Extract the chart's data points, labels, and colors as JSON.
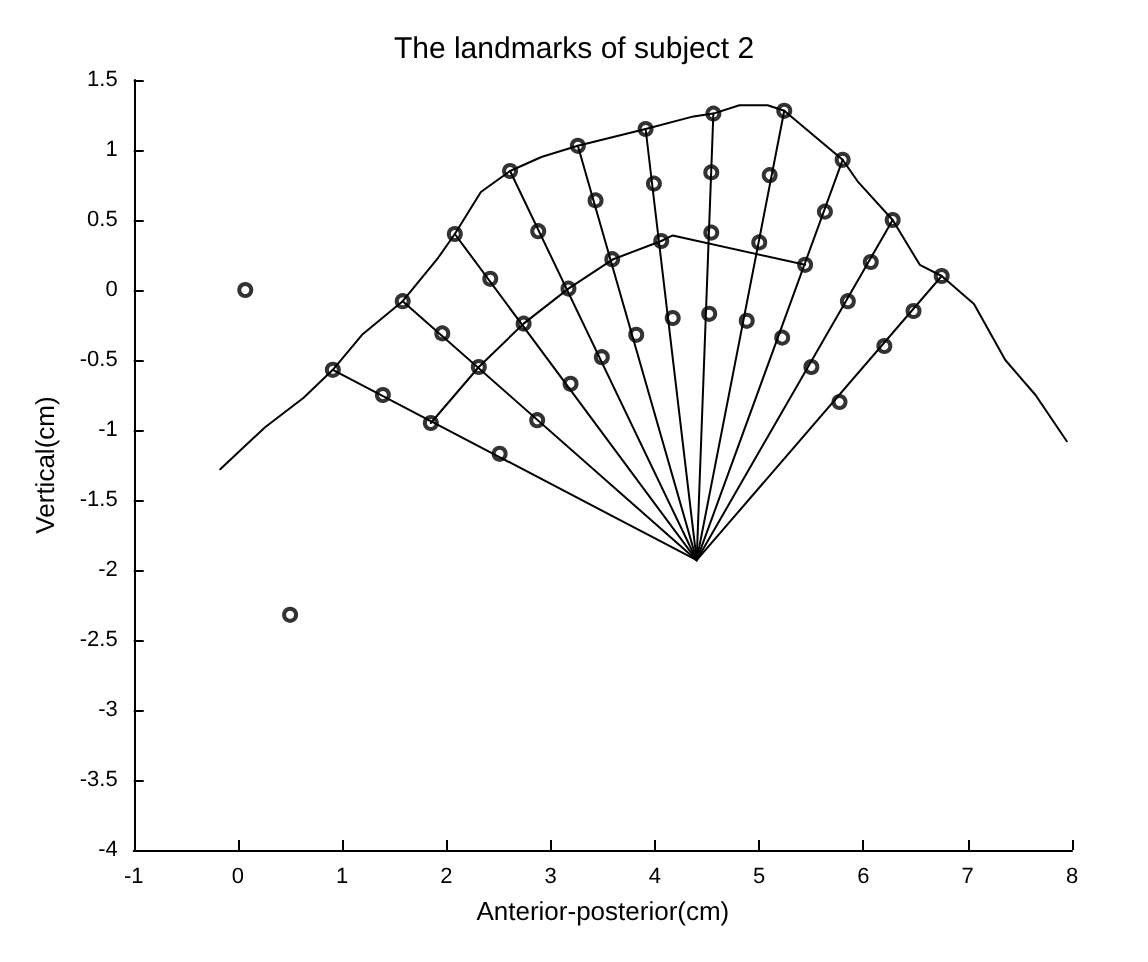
{
  "chart_data": {
    "type": "line",
    "title": "The landmarks of subject 2",
    "xlabel": "Anterior-posterior(cm)",
    "ylabel": "Vertical(cm)",
    "xlim": [
      -1,
      8
    ],
    "xticks": [
      -1,
      0,
      1,
      2,
      3,
      4,
      5,
      6,
      7,
      8
    ],
    "ylim": [
      -4,
      1.5
    ],
    "yticks": [
      -4,
      -3.5,
      -3,
      -2.5,
      -2,
      -1.5,
      -1,
      -0.5,
      0,
      0.5,
      1,
      1.5
    ],
    "grid": false,
    "series": [
      {
        "color": "#000000",
        "x": [
          -0.17,
          0.26,
          0.63,
          0.91,
          1.19,
          1.58,
          1.92,
          2.08,
          2.33,
          2.61,
          2.91,
          3.26,
          3.91,
          4.37,
          4.56,
          4.81,
          5.08,
          5.24,
          5.8,
          5.95,
          6.28,
          6.54,
          6.75,
          7.06,
          7.36,
          7.65,
          7.95
        ],
        "values": [
          -1.28,
          -0.98,
          -0.77,
          -0.57,
          -0.32,
          -0.08,
          0.23,
          0.4,
          0.7,
          0.85,
          0.95,
          1.03,
          1.15,
          1.24,
          1.26,
          1.32,
          1.32,
          1.28,
          0.93,
          0.77,
          0.5,
          0.18,
          0.1,
          -0.1,
          -0.5,
          -0.75,
          -1.08
        ]
      },
      {
        "color": "#000000",
        "x": [
          1.85,
          2.31,
          2.74,
          3.17,
          3.6,
          4.06,
          4.17,
          5.44
        ],
        "values": [
          -0.95,
          -0.55,
          -0.24,
          0.01,
          0.22,
          0.35,
          0.39,
          0.18
        ]
      },
      {
        "color": "#000000",
        "x": [
          4.4,
          0.91
        ],
        "values": [
          -1.93,
          -0.57
        ]
      },
      {
        "color": "#000000",
        "x": [
          4.4,
          1.58
        ],
        "values": [
          -1.93,
          -0.08
        ]
      },
      {
        "color": "#000000",
        "x": [
          4.4,
          2.08
        ],
        "values": [
          -1.93,
          0.4
        ]
      },
      {
        "color": "#000000",
        "x": [
          4.4,
          2.61
        ],
        "values": [
          -1.93,
          0.85
        ]
      },
      {
        "color": "#000000",
        "x": [
          4.4,
          3.26
        ],
        "values": [
          -1.93,
          1.03
        ]
      },
      {
        "color": "#000000",
        "x": [
          4.4,
          3.91
        ],
        "values": [
          -1.93,
          1.15
        ]
      },
      {
        "color": "#000000",
        "x": [
          4.4,
          4.56
        ],
        "values": [
          -1.93,
          1.26
        ]
      },
      {
        "color": "#000000",
        "x": [
          4.4,
          5.24
        ],
        "values": [
          -1.93,
          1.28
        ]
      },
      {
        "color": "#000000",
        "x": [
          4.4,
          5.8
        ],
        "values": [
          -1.93,
          0.93
        ]
      },
      {
        "color": "#000000",
        "x": [
          4.4,
          6.28
        ],
        "values": [
          -1.93,
          0.5
        ]
      },
      {
        "color": "#000000",
        "x": [
          4.4,
          6.75
        ],
        "values": [
          -1.93,
          0.1
        ]
      },
      {
        "type": "scatter",
        "marker": "circle",
        "color": "#000000",
        "x": [
          0.07,
          0.5,
          0.91,
          1.39,
          1.85,
          2.51,
          1.58,
          1.96,
          2.31,
          2.08,
          2.42,
          2.74,
          2.87,
          2.61,
          2.88,
          3.17,
          3.19,
          3.26,
          3.43,
          3.49,
          3.59,
          3.91,
          3.99,
          4.06,
          3.82,
          4.17,
          4.56,
          4.54,
          4.54,
          4.52,
          5.24,
          5.1,
          5.0,
          4.88,
          5.8,
          5.63,
          5.44,
          5.22,
          5.5,
          6.28,
          6.07,
          5.85,
          6.75,
          6.48,
          6.2,
          5.77
        ],
        "values": [
          0.0,
          -2.32,
          -0.57,
          -0.75,
          -0.95,
          -1.17,
          -0.08,
          -0.31,
          -0.55,
          0.4,
          0.08,
          -0.24,
          -0.93,
          0.85,
          0.42,
          0.01,
          -0.67,
          1.03,
          0.64,
          -0.48,
          0.22,
          1.15,
          0.76,
          0.35,
          -0.32,
          -0.2,
          1.26,
          0.84,
          0.41,
          -0.17,
          1.28,
          0.82,
          0.34,
          -0.22,
          0.93,
          0.56,
          0.18,
          -0.34,
          -0.55,
          0.5,
          0.2,
          -0.08,
          0.1,
          -0.15,
          -0.4,
          -0.8
        ]
      }
    ]
  }
}
